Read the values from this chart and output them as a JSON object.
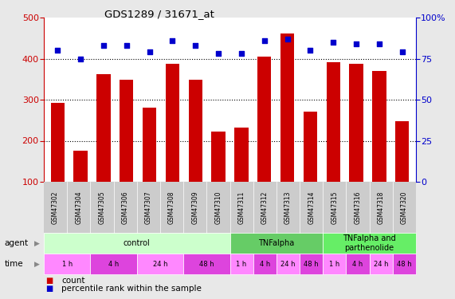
{
  "title": "GDS1289 / 31671_at",
  "samples": [
    "GSM47302",
    "GSM47304",
    "GSM47305",
    "GSM47306",
    "GSM47307",
    "GSM47308",
    "GSM47309",
    "GSM47310",
    "GSM47311",
    "GSM47312",
    "GSM47313",
    "GSM47314",
    "GSM47315",
    "GSM47316",
    "GSM47318",
    "GSM47320"
  ],
  "counts": [
    293,
    176,
    363,
    349,
    281,
    388,
    349,
    222,
    232,
    404,
    462,
    271,
    392,
    388,
    370,
    247
  ],
  "percentiles": [
    80,
    75,
    83,
    83,
    79,
    86,
    83,
    78,
    78,
    86,
    87,
    80,
    85,
    84,
    84,
    79
  ],
  "bar_color": "#cc0000",
  "dot_color": "#0000cc",
  "ylim_left": [
    100,
    500
  ],
  "ylim_right": [
    0,
    100
  ],
  "yticks_left": [
    100,
    200,
    300,
    400,
    500
  ],
  "yticks_right": [
    0,
    25,
    50,
    75,
    100
  ],
  "ytick_labels_right": [
    "0",
    "25",
    "50",
    "75",
    "100%"
  ],
  "grid_values": [
    200,
    300,
    400
  ],
  "agent_groups": [
    {
      "label": "control",
      "start": 0,
      "end": 8,
      "color": "#ccffcc"
    },
    {
      "label": "TNFalpha",
      "start": 8,
      "end": 12,
      "color": "#66cc66"
    },
    {
      "label": "TNFalpha and\nparthenolide",
      "start": 12,
      "end": 16,
      "color": "#66ee66"
    }
  ],
  "time_groups": [
    {
      "label": "1 h",
      "start": 0,
      "end": 2,
      "color": "#ff88ff"
    },
    {
      "label": "4 h",
      "start": 2,
      "end": 4,
      "color": "#dd44dd"
    },
    {
      "label": "24 h",
      "start": 4,
      "end": 6,
      "color": "#ff88ff"
    },
    {
      "label": "48 h",
      "start": 6,
      "end": 8,
      "color": "#dd44dd"
    },
    {
      "label": "1 h",
      "start": 8,
      "end": 9,
      "color": "#ff88ff"
    },
    {
      "label": "4 h",
      "start": 9,
      "end": 10,
      "color": "#dd44dd"
    },
    {
      "label": "24 h",
      "start": 10,
      "end": 11,
      "color": "#ff88ff"
    },
    {
      "label": "48 h",
      "start": 11,
      "end": 12,
      "color": "#dd44dd"
    },
    {
      "label": "1 h",
      "start": 12,
      "end": 13,
      "color": "#ff88ff"
    },
    {
      "label": "4 h",
      "start": 13,
      "end": 14,
      "color": "#dd44dd"
    },
    {
      "label": "24 h",
      "start": 14,
      "end": 15,
      "color": "#ff88ff"
    },
    {
      "label": "48 h",
      "start": 15,
      "end": 16,
      "color": "#dd44dd"
    }
  ],
  "bg_color": "#e8e8e8",
  "plot_bg": "#ffffff",
  "gsm_bg": "#cccccc"
}
